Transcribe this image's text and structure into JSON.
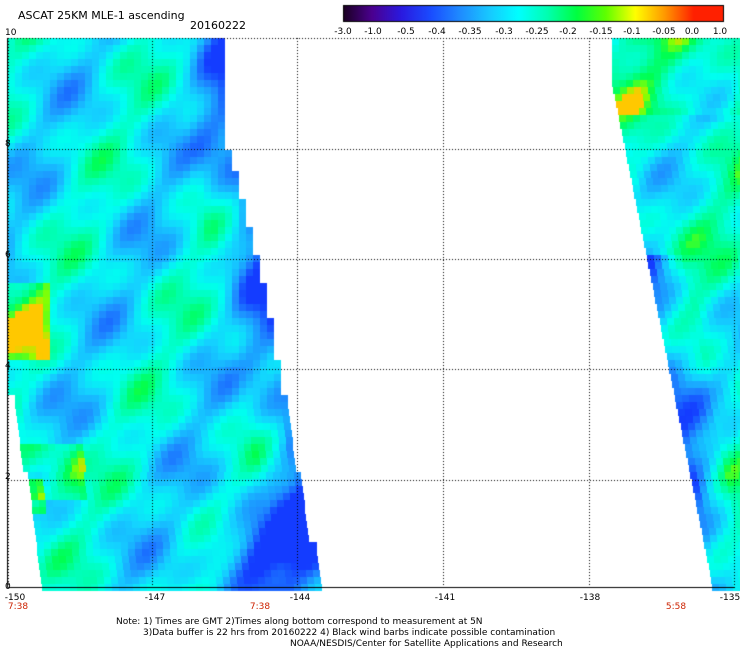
{
  "header": {
    "title": "ASCAT 25KM MLE-1 ascending",
    "date": "20160222"
  },
  "colorbar": {
    "labels": [
      "-3.0",
      "-1.0",
      "-0.5",
      "-0.4",
      "-0.35",
      "-0.3",
      "-0.25",
      "-0.2",
      "-0.15",
      "-0.1",
      "-0.05",
      "0.0",
      "1.0"
    ],
    "colors": [
      "#1a0020",
      "#4b0090",
      "#2a1ae0",
      "#1a4cff",
      "#1f8bff",
      "#18c8ff",
      "#00ffff",
      "#00ffb0",
      "#00ff40",
      "#60ff00",
      "#ffff00",
      "#ff9900",
      "#ff2000"
    ]
  },
  "axes": {
    "y_labels": [
      "10",
      "8",
      "6",
      "4",
      "2",
      "0"
    ],
    "x_labels": [
      "-150",
      "-147",
      "-144",
      "-141",
      "-138",
      "-135"
    ]
  },
  "times": [
    "7:38",
    "7:38",
    "5:58"
  ],
  "notes": {
    "line1": "Note: 1) Times are GMT 2)Times along bottom correspond to measurement at 5N",
    "line2": "3)Data buffer is 22 hrs from 20160222 4) Black wind barbs indicate possible contamination",
    "line3": "NOAA/NESDIS/Center for Satellite Applications and Research"
  }
}
